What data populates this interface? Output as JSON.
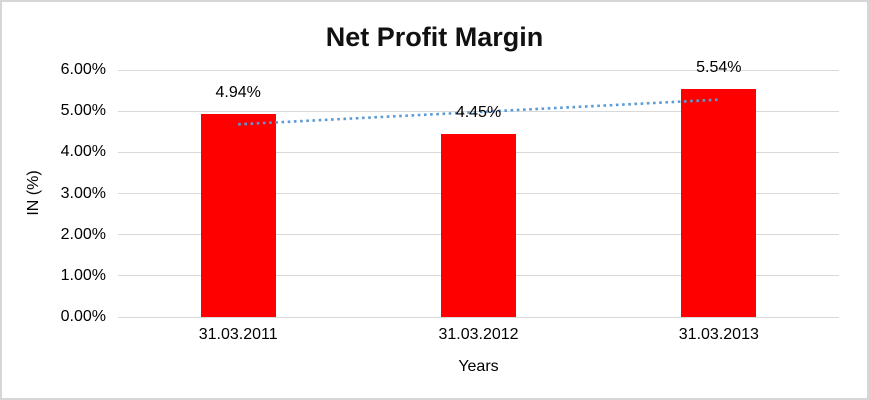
{
  "figure": {
    "background": "#ffffff",
    "frame_color": "#d6d6d6"
  },
  "chart_data": {
    "type": "bar",
    "title": "Net Profit Margin",
    "categories": [
      "31.03.2011",
      "31.03.2012",
      "31.03.2013"
    ],
    "values": [
      4.94,
      4.45,
      5.54
    ],
    "data_labels": [
      "4.94%",
      "4.45%",
      "5.54%"
    ],
    "xlabel": "Years",
    "ylabel": "IN (%)",
    "ylim": [
      0,
      6
    ],
    "ytick_step": 1,
    "ytick_labels": [
      "0.00%",
      "1.00%",
      "2.00%",
      "3.00%",
      "4.00%",
      "5.00%",
      "6.00%"
    ],
    "grid": true,
    "legend": "none",
    "bar_color": "#FF0000",
    "gridline_color": "#D9D9D9",
    "trendline": {
      "type": "linear",
      "style": "dotted",
      "color": "#5B9BD5",
      "start_value": 4.68,
      "end_value": 5.28
    }
  }
}
